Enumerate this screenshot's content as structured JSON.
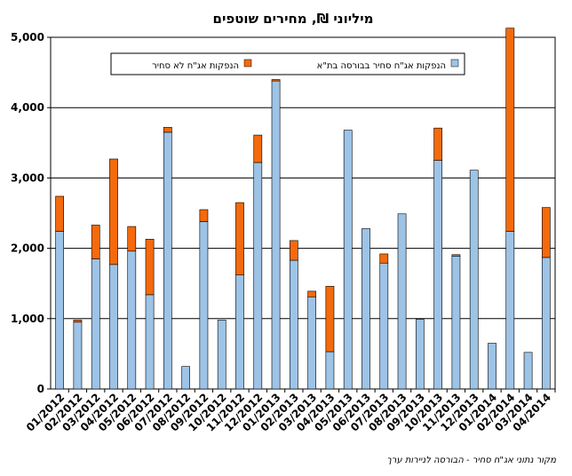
{
  "chart_data": {
    "type": "bar",
    "stacked": true,
    "title": "מיליוני ₪, מחירים שוטפים",
    "source_note": "מקור נתוני אג\"ח סחיר - הבורסה לניירות ערך",
    "ylim": [
      0,
      5000
    ],
    "y_ticks": [
      "0",
      "1,000",
      "2,000",
      "3,000",
      "4,000",
      "5,000"
    ],
    "y_tick_values": [
      0,
      1000,
      2000,
      3000,
      4000,
      5000
    ],
    "grid": true,
    "legend_position": "top",
    "categories": [
      "01/2012",
      "02/2012",
      "03/2012",
      "04/2012",
      "05/2012",
      "06/2012",
      "07/2012",
      "08/2012",
      "09/2012",
      "10/2012",
      "11/2012",
      "12/2012",
      "01/2013",
      "02/2013",
      "03/2013",
      "04/2013",
      "05/2013",
      "06/2013",
      "07/2013",
      "08/2013",
      "09/2013",
      "10/2013",
      "11/2013",
      "12/2013",
      "01/2014",
      "02/2014",
      "03/2014",
      "04/2014"
    ],
    "series": [
      {
        "name": "הנפקות אג\"ח סחיר בבורסה בת\"א",
        "color": "#9DC3E6",
        "values": [
          2240,
          950,
          1850,
          1770,
          1960,
          1340,
          3650,
          320,
          2380,
          980,
          1620,
          3220,
          4380,
          1830,
          1310,
          530,
          3680,
          2280,
          1790,
          2490,
          990,
          3250,
          1890,
          3110,
          650,
          2240,
          520,
          1870
        ]
      },
      {
        "name": "הנפקות אג\"ח לא סחיר",
        "color": "#F46A0C",
        "values": [
          500,
          30,
          480,
          1500,
          350,
          790,
          70,
          0,
          170,
          0,
          1030,
          390,
          20,
          280,
          80,
          930,
          0,
          0,
          130,
          0,
          0,
          460,
          20,
          0,
          0,
          2890,
          0,
          710
        ]
      }
    ]
  }
}
